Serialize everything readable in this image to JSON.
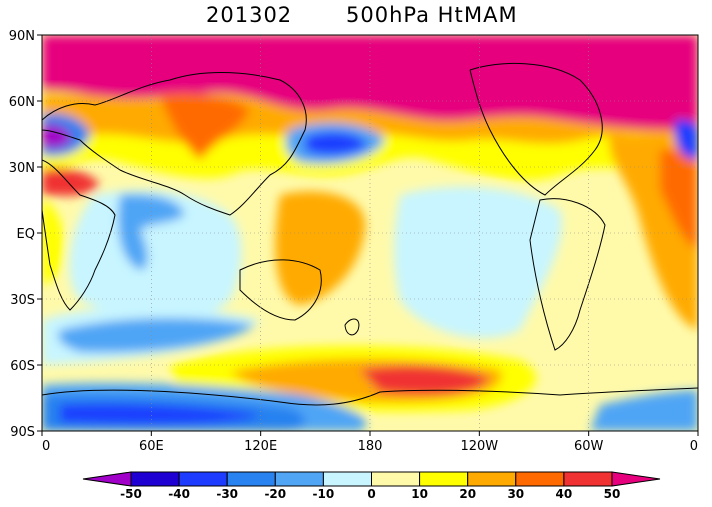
{
  "title": {
    "period": "201302",
    "variable": "500hPa Ht",
    "season": "MAM"
  },
  "map": {
    "projection": "cylindrical equidistant",
    "lon_range": [
      0,
      360
    ],
    "lat_range": [
      -90,
      90
    ],
    "grid_lines": true,
    "lat_labels": [
      "90N",
      "60N",
      "30N",
      "EQ",
      "30S",
      "60S",
      "90S"
    ],
    "lon_labels": [
      "0",
      "60E",
      "120E",
      "180",
      "120W",
      "60W",
      "0"
    ]
  },
  "colorbar": {
    "levels": [
      "-50",
      "-40",
      "-30",
      "-20",
      "-10",
      "0",
      "10",
      "20",
      "30",
      "40",
      "50"
    ],
    "colors": [
      "#a000c8",
      "#1e00d2",
      "#1e3cff",
      "#2882f0",
      "#50a5f5",
      "#c8f5ff",
      "#fffaaa",
      "#ffff00",
      "#ffaa00",
      "#ff6a00",
      "#f03232",
      "#e6007e"
    ]
  }
}
